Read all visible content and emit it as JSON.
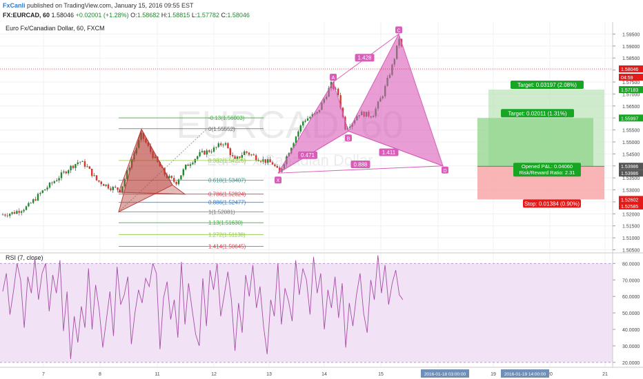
{
  "header": {
    "user": "FxCanli",
    "published": " published on TradingView.com, January 15, 2016 09:55 EST",
    "symbol": "FX:EURCAD, 60",
    "last": "1.58046",
    "change": "+0.02001 (+1.28%)",
    "open_label": "O:",
    "open": "1.58682",
    "high_label": "H:",
    "high": "1.58815",
    "low_label": "L:",
    "low": "1.57782",
    "close_label": "C:",
    "close": "1.58046"
  },
  "pane_title": "Euro Fx/Canadian Dollar, 60, FXCM",
  "rsi_title": "RSI (7, close)",
  "watermark": {
    "line1": "EURCAD, 60",
    "line2": "Euro Fx/Canadian Dollar"
  },
  "colors": {
    "up": "#1d8b2a",
    "down": "#d9352c",
    "pattern_pink": "#d85cb8",
    "pattern_red": "#b8403a",
    "target_green": "#17a624",
    "stop_red": "#e61919",
    "rsi_line": "#a64ca6",
    "rsi_band": "#f1e2f5"
  },
  "chart_data": [
    {
      "type": "candlestick",
      "title": "Euro Fx/Canadian Dollar, 60, FXCM",
      "ylim": [
        1.504,
        1.6
      ],
      "price_axis_ticks": [
        "1.59500",
        "1.59000",
        "1.58500",
        "1.58000",
        "1.57500",
        "1.57000",
        "1.56500",
        "1.56000",
        "1.55500",
        "1.55000",
        "1.54500",
        "1.54000",
        "1.53500",
        "1.53000",
        "1.52500",
        "1.52000",
        "1.51500",
        "1.51000",
        "1.50500"
      ],
      "price_axis_tags": [
        {
          "label": "1.58046",
          "color": "#e61919"
        },
        {
          "label": "04:59",
          "color": "#e61919"
        },
        {
          "label": "1.57183",
          "color": "#17a624"
        },
        {
          "label": "1.55997",
          "color": "#17a624"
        },
        {
          "label": "1.53986",
          "color": "#555555"
        },
        {
          "label": "1.53986",
          "color": "#555555"
        },
        {
          "label": "1.52602",
          "color": "#e61919"
        },
        {
          "label": "1.52585",
          "color": "#e61919"
        }
      ],
      "x_axis_ticks": [
        "7",
        "8",
        "11",
        "12",
        "13",
        "14",
        "15",
        "18",
        "19",
        "20",
        "21"
      ],
      "x_axis_tags": [
        "2016-01-18 03:00:00",
        "2016-01-19 14:00:00"
      ],
      "fib_levels": [
        {
          "label": "-0.13(1.56003)",
          "price": 1.56003,
          "color": "#3fae3f"
        },
        {
          "label": "0(1.55552)",
          "price": 1.55552,
          "color": "#666666"
        },
        {
          "label": "0.382(1.54226)",
          "price": 1.54226,
          "color": "#8cc63f"
        },
        {
          "label": "0.618(1.53407)",
          "price": 1.53407,
          "color": "#2a9d8f"
        },
        {
          "label": "0.786(1.52824)",
          "price": 1.52824,
          "color": "#e63946"
        },
        {
          "label": "0.886(1.52477)",
          "price": 1.52477,
          "color": "#2a7ad6"
        },
        {
          "label": "1(1.52081)",
          "price": 1.52081,
          "color": "#777777"
        },
        {
          "label": "1.13(1.51630)",
          "price": 1.5163,
          "color": "#3fae3f"
        },
        {
          "label": "1.272(1.51138)",
          "price": 1.51138,
          "color": "#8cc63f"
        },
        {
          "label": "1.414(1.50645)",
          "price": 1.50645,
          "color": "#e63946"
        }
      ],
      "harmonic_pattern": {
        "points": [
          {
            "name": "X",
            "price": 1.537
          },
          {
            "name": "A",
            "price": 1.575
          },
          {
            "name": "B",
            "price": 1.5545
          },
          {
            "name": "C",
            "price": 1.595
          },
          {
            "name": "D",
            "price": 1.54
          }
        ],
        "ratios": [
          {
            "name": "XB",
            "label": "0.471"
          },
          {
            "name": "AC",
            "label": "1.428"
          },
          {
            "name": "BD",
            "label": "1.411"
          },
          {
            "name": "XD",
            "label": "0.888"
          }
        ]
      },
      "trade": {
        "target1_label": "Target: 0.03197 (2.08%)",
        "target2_label": "Target: 0.02011 (1.31%)",
        "pl_label": "Opened P&L: 0.04060",
        "rr_label": "Risk/Reward Ratio: 2.31",
        "stop_label": "Stop: 0.01384 (0.90%)",
        "target1": 1.57183,
        "target2": 1.55997,
        "entry": 1.53986,
        "stop": 1.52602
      },
      "last_price": 1.58046
    },
    {
      "type": "line",
      "title": "RSI (7, close)",
      "ylim": [
        17,
        86
      ],
      "y_axis_ticks": [
        "80.0000",
        "70.0000",
        "60.0000",
        "50.0000",
        "40.0000",
        "30.0000",
        "20.0000"
      ],
      "band": [
        20,
        80
      ],
      "series": [
        {
          "values": [
            63,
            74,
            49,
            63,
            80,
            70,
            41,
            72,
            62,
            83,
            58,
            74,
            80,
            51,
            73,
            62,
            82,
            39,
            63,
            22,
            48,
            32,
            54,
            41,
            77,
            40,
            67,
            52,
            29,
            46,
            63,
            36,
            78,
            55,
            61,
            72,
            31,
            50,
            64,
            56,
            71,
            66,
            80,
            74,
            28,
            59,
            69,
            46,
            58,
            35,
            81,
            43,
            68,
            52,
            37,
            30,
            71,
            42,
            76,
            64,
            80,
            48,
            61,
            75,
            58,
            27,
            56,
            38,
            73,
            60,
            79,
            53,
            66,
            42,
            25,
            58,
            48,
            80,
            43,
            65,
            57,
            45,
            82,
            61,
            77,
            70,
            49,
            84,
            62,
            74,
            40,
            64,
            53,
            72,
            47,
            68,
            29,
            56,
            42,
            61,
            74,
            50,
            38,
            70,
            58,
            85,
            62,
            79,
            55,
            68,
            76,
            61,
            58
          ]
        }
      ]
    }
  ]
}
